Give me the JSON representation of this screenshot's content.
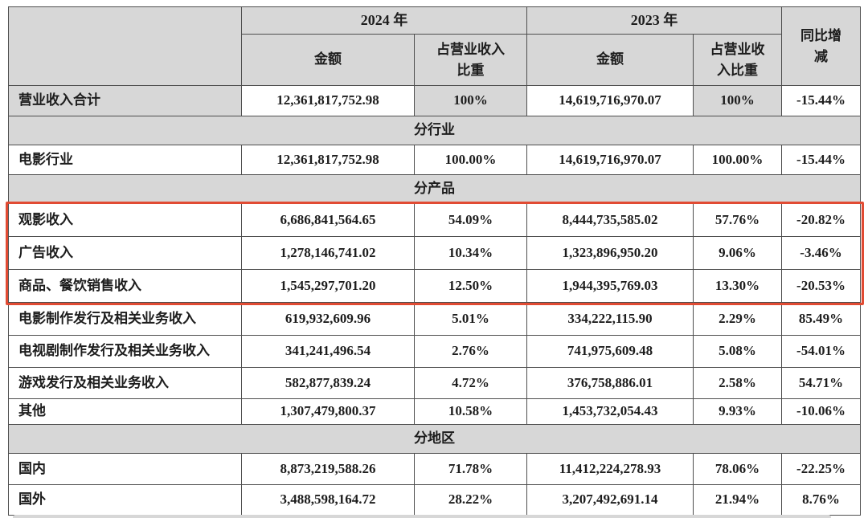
{
  "colors": {
    "header_gray": "#d7d7d7",
    "border_line": "#4e4e4e",
    "text": "#1d1d1d",
    "highlight_red": "#e14b33",
    "background": "#ffffff"
  },
  "table": {
    "header": {
      "corner": "",
      "year_2024": "2024 年",
      "year_2023": "2023 年",
      "amount_2024": "金额",
      "share_2024": "占营业收入比重",
      "amount_2023": "金额",
      "share_2023": "占营业收入比重",
      "yoy": "同比增减"
    },
    "rows": [
      {
        "type": "data",
        "label": "营业收入合计",
        "amount_2024": "12,361,817,752.98",
        "share_2024": "100%",
        "amount_2023": "14,619,716,970.07",
        "share_2023": "100%",
        "yoy": "-15.44%",
        "shaded_label": true,
        "highlighted": false
      },
      {
        "type": "section",
        "label": "分行业"
      },
      {
        "type": "data",
        "label": "电影行业",
        "amount_2024": "12,361,817,752.98",
        "share_2024": "100.00%",
        "amount_2023": "14,619,716,970.07",
        "share_2023": "100.00%",
        "yoy": "-15.44%",
        "highlighted": false
      },
      {
        "type": "section",
        "label": "分产品"
      },
      {
        "type": "data",
        "label": "观影收入",
        "amount_2024": "6,686,841,564.65",
        "share_2024": "54.09%",
        "amount_2023": "8,444,735,585.02",
        "share_2023": "57.76%",
        "yoy": "-20.82%",
        "highlighted": true
      },
      {
        "type": "data",
        "label": "广告收入",
        "amount_2024": "1,278,146,741.02",
        "share_2024": "10.34%",
        "amount_2023": "1,323,896,950.20",
        "share_2023": "9.06%",
        "yoy": "-3.46%",
        "highlighted": true
      },
      {
        "type": "data",
        "label": "商品、餐饮销售收入",
        "amount_2024": "1,545,297,701.20",
        "share_2024": "12.50%",
        "amount_2023": "1,944,395,769.03",
        "share_2023": "13.30%",
        "yoy": "-20.53%",
        "highlighted": true
      },
      {
        "type": "data",
        "label": "电影制作发行及相关业务收入",
        "amount_2024": "619,932,609.96",
        "share_2024": "5.01%",
        "amount_2023": "334,222,115.90",
        "share_2023": "2.29%",
        "yoy": "85.49%",
        "highlighted": false
      },
      {
        "type": "data",
        "label": "电视剧制作发行及相关业务收入",
        "amount_2024": "341,241,496.54",
        "share_2024": "2.76%",
        "amount_2023": "741,975,609.48",
        "share_2023": "5.08%",
        "yoy": "-54.01%",
        "highlighted": false
      },
      {
        "type": "data",
        "label": "游戏发行及相关业务收入",
        "amount_2024": "582,877,839.24",
        "share_2024": "4.72%",
        "amount_2023": "376,758,886.01",
        "share_2023": "2.58%",
        "yoy": "54.71%",
        "highlighted": false
      },
      {
        "type": "data",
        "label": "其他",
        "amount_2024": "1,307,479,800.37",
        "share_2024": "10.58%",
        "amount_2023": "1,453,732,054.43",
        "share_2023": "9.93%",
        "yoy": "-10.06%",
        "highlighted": false
      },
      {
        "type": "section",
        "label": "分地区"
      },
      {
        "type": "data",
        "label": "国内",
        "amount_2024": "8,873,219,588.26",
        "share_2024": "71.78%",
        "amount_2023": "11,412,224,278.93",
        "share_2023": "78.06%",
        "yoy": "-22.25%",
        "highlighted": false
      },
      {
        "type": "data",
        "label": "国外",
        "amount_2024": "3,488,598,164.72",
        "share_2024": "28.22%",
        "amount_2023": "3,207,492,691.14",
        "share_2023": "21.94%",
        "yoy": "8.76%",
        "highlighted": false
      }
    ]
  }
}
